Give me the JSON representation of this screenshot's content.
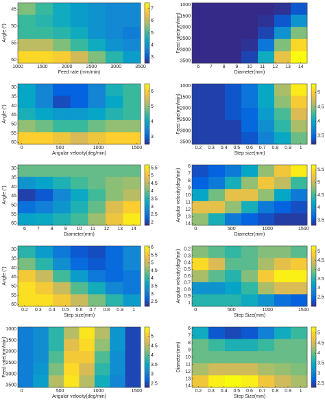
{
  "chart_data": [
    {
      "type": "heatmap",
      "xlabel": "Feed rate (mm/min)",
      "ylabel": "Angle (°)",
      "colormap": "parula",
      "yreverse": true,
      "xlim": [
        1000,
        3500
      ],
      "xticks": [
        1000,
        1500,
        2000,
        2500,
        3000,
        3500
      ],
      "ylim": [
        43,
        61
      ],
      "yticks": [
        45,
        50,
        55,
        60
      ],
      "clim": [
        2.5,
        7.5
      ],
      "cticks": [
        3,
        4,
        5,
        6,
        7
      ],
      "z": [
        [
          5.5,
          5,
          4.5,
          4.2,
          4,
          3.8,
          3.8
        ],
        [
          5,
          4.8,
          4.5,
          4.2,
          4,
          3.8,
          3.8
        ],
        [
          5,
          5,
          4.8,
          4.5,
          4,
          3.8,
          3.6
        ],
        [
          6,
          6,
          5.5,
          5,
          4.5,
          4,
          3.8
        ],
        [
          7,
          7,
          6.8,
          6.2,
          5.5,
          4.8,
          4.2
        ]
      ]
    },
    {
      "type": "heatmap",
      "xlabel": "Diameter(mm)",
      "ylabel": "Feed rate(mm/min)",
      "colormap": "parula",
      "yreverse": true,
      "xlim": [
        5.5,
        14.5
      ],
      "xticks": [
        6,
        7,
        8,
        9,
        10,
        11,
        12,
        13,
        14
      ],
      "ylim": [
        900,
        3600
      ],
      "yticks": [
        1000,
        1500,
        2000,
        2500,
        3000,
        3500
      ],
      "clim": [
        2.5,
        7.5
      ],
      "z": [
        [
          2.5,
          2.5,
          2.5,
          2.5,
          2.5,
          2.6,
          3
        ],
        [
          2.5,
          2.5,
          2.5,
          2.5,
          2.6,
          3,
          4
        ],
        [
          2.5,
          2.5,
          2.5,
          2.5,
          2.8,
          4,
          5.5
        ],
        [
          2.5,
          2.5,
          2.5,
          2.6,
          3.5,
          5.5,
          7
        ],
        [
          2.5,
          2.5,
          2.5,
          2.8,
          4.5,
          6.5,
          7.5
        ]
      ]
    },
    {
      "type": "heatmap",
      "xlabel": "Angular velocity(deg/min)",
      "ylabel": "Angle (°)",
      "colormap": "parula",
      "yreverse": true,
      "xlim": [
        -50,
        1550
      ],
      "xticks": [
        0,
        500,
        1000,
        1500
      ],
      "ylim": [
        28,
        61
      ],
      "yticks": [
        30,
        35,
        40,
        45,
        50,
        55,
        60
      ],
      "clim": [
        2.5,
        6.5
      ],
      "cticks": [
        3,
        4,
        5,
        6
      ],
      "z": [
        [
          4,
          3.5,
          3,
          3,
          3.5,
          4.2,
          4.5
        ],
        [
          4,
          3.5,
          2.8,
          3,
          3.5,
          4,
          4.5
        ],
        [
          4.2,
          4,
          3.8,
          3.8,
          4,
          4.3,
          4.5
        ],
        [
          5,
          4.8,
          4.5,
          4.5,
          4.8,
          5,
          5
        ],
        [
          6,
          6,
          5.8,
          5.5,
          5.8,
          6,
          6
        ]
      ]
    },
    {
      "type": "heatmap",
      "xlabel": "Step size(mm)",
      "ylabel": "Feed rate(mm/min)",
      "colormap": "parula",
      "yreverse": true,
      "xlim": [
        0.15,
        1.05
      ],
      "xticks": [
        0.2,
        0.3,
        0.4,
        0.5,
        0.6,
        0.7,
        0.8,
        0.9,
        1
      ],
      "ylim": [
        900,
        3600
      ],
      "yticks": [
        1000,
        1500,
        2000,
        2500,
        3000,
        3500
      ],
      "clim": [
        3.2,
        5.3
      ],
      "cticks": [
        3.5,
        4,
        4.5,
        5
      ],
      "z": [
        [
          3.3,
          3.3,
          3.4,
          3.6,
          4,
          4.6,
          5.2
        ],
        [
          3.3,
          3.3,
          3.4,
          3.6,
          4,
          4.5,
          5
        ],
        [
          3.3,
          3.3,
          3.4,
          3.5,
          3.9,
          4.3,
          4.8
        ],
        [
          3.3,
          3.3,
          3.3,
          3.5,
          3.8,
          4.2,
          4.6
        ],
        [
          3.3,
          3.3,
          3.3,
          3.4,
          3.7,
          4,
          4.4
        ]
      ]
    },
    {
      "type": "heatmap",
      "xlabel": "Diameter(mm)",
      "ylabel": "Angle (°)",
      "colormap": "parula",
      "yreverse": true,
      "xlim": [
        5.5,
        14.5
      ],
      "xticks": [
        6,
        7,
        8,
        9,
        10,
        11,
        12,
        13,
        14
      ],
      "ylim": [
        28,
        61
      ],
      "yticks": [
        30,
        35,
        40,
        45,
        50,
        55,
        60
      ],
      "clim": [
        1.8,
        5.7
      ],
      "cticks": [
        2,
        2.5,
        3,
        3.5,
        4,
        4.5,
        5,
        5.5
      ],
      "z": [
        [
          4,
          4,
          4,
          4,
          4,
          4,
          4
        ],
        [
          3,
          3.2,
          3.5,
          3.8,
          4,
          4.2,
          4.3
        ],
        [
          2,
          2.2,
          2.8,
          3.3,
          3.8,
          4.2,
          4.5
        ],
        [
          2.5,
          2.7,
          3,
          3.5,
          4,
          4.8,
          5.2
        ],
        [
          3.2,
          3.3,
          3.5,
          3.8,
          4.3,
          5,
          5.5
        ]
      ]
    },
    {
      "type": "heatmap",
      "xlabel": "Diameter(mm)",
      "ylabel": "Angular velocity(deg/min)",
      "colormap": "parula",
      "yreverse": true,
      "xlim": [
        -50,
        1550
      ],
      "xticks": [
        0,
        500,
        1000,
        1500
      ],
      "ylim": [
        5.8,
        14.2
      ],
      "yticks": [
        6,
        7,
        8,
        9,
        10,
        11,
        12,
        13,
        14
      ],
      "clim": [
        3.3,
        5.7
      ],
      "cticks": [
        3.5,
        4,
        4.5,
        5,
        5.5
      ],
      "z": [
        [
          3.5,
          3.6,
          3.8,
          4.2,
          4.8,
          5.3,
          5.6
        ],
        [
          3.6,
          3.8,
          4.3,
          4.8,
          5.3,
          5,
          4.5
        ],
        [
          4.2,
          4.7,
          5.2,
          5.2,
          4.8,
          4.2,
          3.8
        ],
        [
          5.2,
          5.2,
          4.8,
          4.3,
          3.8,
          3.6,
          3.5
        ],
        [
          4.8,
          4.3,
          3.8,
          3.6,
          3.5,
          3.4,
          3.4
        ]
      ]
    },
    {
      "type": "heatmap",
      "xlabel": "Step size(mm)",
      "ylabel": "Angle (°)",
      "colormap": "parula",
      "yreverse": true,
      "xlim": [
        0.15,
        1.05
      ],
      "xticks": [
        0.2,
        0.3,
        0.4,
        0.5,
        0.6,
        0.7,
        0.8,
        0.9,
        1
      ],
      "ylim": [
        28,
        61
      ],
      "yticks": [
        30,
        35,
        40,
        45,
        50,
        55,
        60
      ],
      "clim": [
        2.2,
        6.1
      ],
      "cticks": [
        2.5,
        3,
        3.5,
        4,
        4.5,
        5,
        5.5,
        6
      ],
      "z": [
        [
          4,
          3.5,
          3,
          2.6,
          2.5,
          2.8,
          3.2
        ],
        [
          4.5,
          4,
          3.3,
          2.8,
          2.6,
          2.8,
          3.2
        ],
        [
          5.5,
          5,
          4.2,
          3.5,
          3,
          2.8,
          3
        ],
        [
          5.8,
          5.5,
          5,
          4.3,
          3.8,
          3.2,
          3
        ],
        [
          5.8,
          5.8,
          5.5,
          5,
          4.5,
          4,
          3.5
        ]
      ]
    },
    {
      "type": "heatmap",
      "xlabel": "Step Size(mm)",
      "ylabel": "Angular velocity(deg/min)",
      "colormap": "parula",
      "yreverse": true,
      "xlim": [
        -50,
        1550
      ],
      "xticks": [
        0,
        500,
        1000,
        1500
      ],
      "ylim": [
        0.15,
        1.05
      ],
      "yticks": [
        0.2,
        0.3,
        0.4,
        0.5,
        0.6,
        0.7,
        0.8,
        0.9,
        1
      ],
      "clim": [
        2,
        5.3
      ],
      "cticks": [
        2.5,
        3,
        3.5,
        4,
        4.5,
        5
      ],
      "z": [
        [
          4,
          3.8,
          3.6,
          3.8,
          4,
          4,
          3.8
        ],
        [
          5,
          4.5,
          3.8,
          3.8,
          4.2,
          4.6,
          4.8
        ],
        [
          4.2,
          3.8,
          3.5,
          4,
          4.8,
          5.2,
          5.2
        ],
        [
          3,
          3,
          3.2,
          3.6,
          4.2,
          4.5,
          4.5
        ],
        [
          3.5,
          3.5,
          3.5,
          3.3,
          3,
          2.6,
          2.4
        ]
      ]
    },
    {
      "type": "heatmap",
      "xlabel": "Angular velocity(deg/min)",
      "ylabel": "Feed rate(mm/min)",
      "colormap": "parula",
      "yreverse": true,
      "xlim": [
        -50,
        1550
      ],
      "xticks": [
        0,
        500,
        1000,
        1500
      ],
      "ylim": [
        900,
        3600
      ],
      "yticks": [
        1000,
        1500,
        2000,
        2500,
        3000,
        3500
      ],
      "clim": [
        2.3,
        5.5
      ],
      "cticks": [
        2.5,
        3,
        3.5,
        4,
        4.5,
        5
      ],
      "z": [
        [
          3,
          3.2,
          3.8,
          4.5,
          5.3,
          4.5,
          3.3,
          2.5
        ],
        [
          3,
          3.2,
          3.8,
          4.8,
          5.2,
          4.3,
          3.3,
          2.5
        ],
        [
          3,
          3.2,
          4,
          5,
          5,
          4,
          3.2,
          2.5
        ],
        [
          3,
          3.3,
          4.2,
          5.2,
          4.7,
          3.8,
          3.2,
          2.5
        ],
        [
          3,
          3.4,
          4.5,
          5.3,
          4.5,
          3.6,
          3.1,
          2.5
        ]
      ]
    },
    {
      "type": "heatmap",
      "xlabel": "Step Size(mm)",
      "ylabel": "Diameter(mm)",
      "colormap": "parula",
      "yreverse": true,
      "xlim": [
        0.15,
        1.05
      ],
      "xticks": [
        0.2,
        0.3,
        0.4,
        0.5,
        0.6,
        0.7,
        0.8,
        0.9,
        1
      ],
      "ylim": [
        5.8,
        14.2
      ],
      "yticks": [
        6,
        7,
        8,
        9,
        10,
        11,
        12,
        13,
        14
      ],
      "clim": [
        2.3,
        5.3
      ],
      "cticks": [
        2.5,
        3,
        3.5,
        4,
        4.5,
        5
      ],
      "z": [
        [
          3.5,
          2.6,
          2.5,
          2.6,
          3,
          3.5,
          3.8
        ],
        [
          4,
          3.8,
          3.6,
          3.6,
          3.8,
          4,
          4
        ],
        [
          4,
          4,
          4,
          4,
          4,
          4,
          4
        ],
        [
          4.3,
          4.5,
          4.5,
          4.5,
          4.3,
          4.2,
          4.1
        ],
        [
          4.8,
          5.2,
          5.3,
          5.2,
          4.8,
          4.5,
          4.3
        ]
      ]
    }
  ]
}
